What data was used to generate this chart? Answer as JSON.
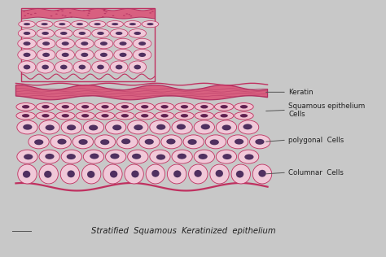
{
  "title": "Stratified  Squamous  Keratinized  epithelium",
  "bg_color": "#c8c8c8",
  "paper_color": "#dcdbd6",
  "cell_fill": "#f0c8d8",
  "cell_outline": "#c03060",
  "nucleus_fill": "#503060",
  "keratin_fill": "#d86080",
  "keratin_line": "#b03060",
  "squam_fill": "#f0c0d0",
  "squam_nucleus": "#602050",
  "label_color": "#222222",
  "line_color": "#555555",
  "labels": {
    "keratin": "Keratin",
    "squamous": "Squamous epithelium\nCells",
    "polygonal": "polygonal  Cells",
    "columnar": "Columnar  Cells"
  }
}
